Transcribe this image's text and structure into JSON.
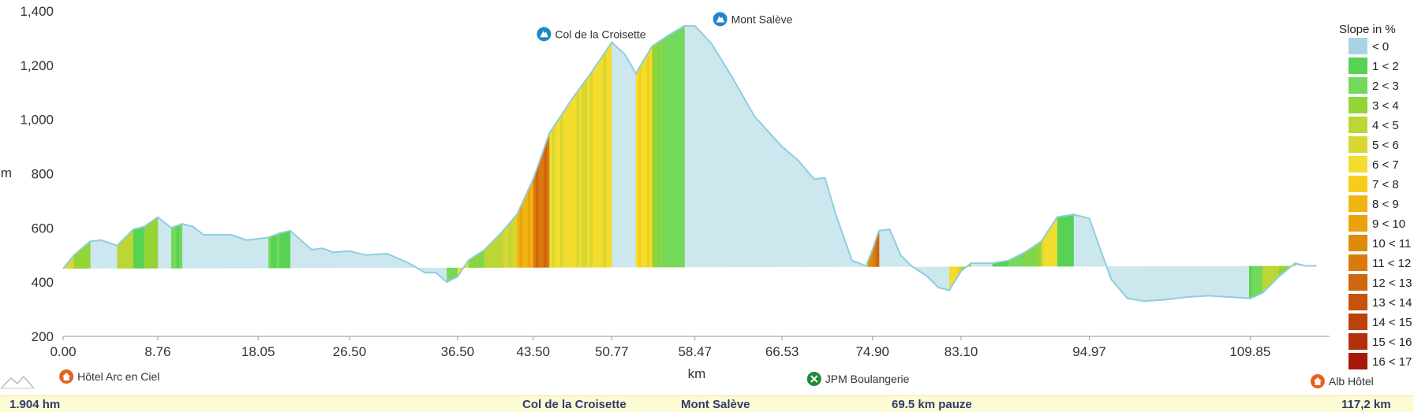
{
  "chart_data": {
    "type": "area",
    "title": "",
    "xlabel": "km",
    "ylabel": "m",
    "xlim": [
      0,
      117.2
    ],
    "ylim": [
      200,
      1400
    ],
    "x_ticks": [
      "0.00",
      "8.76",
      "18.05",
      "26.50",
      "36.50",
      "43.50",
      "50.77",
      "58.47",
      "66.53",
      "74.90",
      "83.10",
      "94.97",
      "109.85"
    ],
    "y_ticks": [
      "200",
      "400",
      "600",
      "800",
      "1,000",
      "1,200",
      "1,400"
    ],
    "elevation": {
      "km": [
        0,
        1,
        2.5,
        3.5,
        5,
        6.5,
        7.5,
        8.76,
        10,
        11,
        12,
        13,
        15.5,
        17,
        19,
        20,
        21,
        22,
        23,
        24,
        25,
        26.5,
        28,
        30,
        32,
        33.5,
        34.5,
        35.5,
        36.5,
        37.5,
        39,
        40.5,
        42,
        43.5,
        45,
        47,
        49,
        50.77,
        52,
        53,
        54.5,
        56,
        57.5,
        58.47,
        60,
        62,
        64,
        66.53,
        68,
        69.5,
        70.5,
        71.5,
        73,
        74.3,
        74.9,
        75.5,
        76.5,
        77.5,
        78.5,
        80,
        81,
        82,
        83.1,
        84,
        85,
        86,
        87.5,
        89,
        90.5,
        92,
        93.5,
        94.97,
        96,
        97,
        98.5,
        100,
        102,
        104,
        106,
        108,
        109.85,
        111,
        112.5,
        114,
        115,
        116,
        117.2
      ],
      "m": [
        450,
        500,
        550,
        555,
        535,
        595,
        605,
        640,
        600,
        615,
        605,
        575,
        575,
        555,
        565,
        580,
        590,
        555,
        520,
        525,
        510,
        515,
        500,
        505,
        470,
        435,
        435,
        400,
        420,
        480,
        520,
        580,
        650,
        780,
        950,
        1070,
        1180,
        1285,
        1240,
        1170,
        1270,
        1310,
        1345,
        1345,
        1280,
        1150,
        1010,
        900,
        850,
        780,
        785,
        650,
        480,
        460,
        520,
        590,
        595,
        500,
        460,
        420,
        380,
        370,
        440,
        470,
        470,
        470,
        480,
        510,
        550,
        640,
        650,
        635,
        520,
        410,
        340,
        330,
        335,
        345,
        350,
        345,
        340,
        360,
        420,
        470,
        460,
        460
      ]
    },
    "slope_legend": {
      "title": "Slope in %",
      "classes": [
        {
          "label": "< 0",
          "color": "#a8d4e2"
        },
        {
          "label": "1 < 2",
          "color": "#56d255"
        },
        {
          "label": "2 < 3",
          "color": "#74d85a"
        },
        {
          "label": "3 < 4",
          "color": "#93d437"
        },
        {
          "label": "4 < 5",
          "color": "#bcd635"
        },
        {
          "label": "5 < 6",
          "color": "#d7d632"
        },
        {
          "label": "6 < 7",
          "color": "#f2dd2e"
        },
        {
          "label": "7 < 8",
          "color": "#f7cc1a"
        },
        {
          "label": "8 < 9",
          "color": "#f1b512"
        },
        {
          "label": "9 < 10",
          "color": "#eba10c"
        },
        {
          "label": "10 < 11",
          "color": "#de8b0c"
        },
        {
          "label": "11 < 12",
          "color": "#d9790e"
        },
        {
          "label": "12 < 13",
          "color": "#cf650c"
        },
        {
          "label": "13 < 14",
          "color": "#c7520b"
        },
        {
          "label": "14 < 15",
          "color": "#bd410a"
        },
        {
          "label": "15 < 16",
          "color": "#b52e0b"
        },
        {
          "label": "16 < 17",
          "color": "#a6180b"
        }
      ]
    },
    "peaks": [
      {
        "label": "Col de la Croisette",
        "km": 44.5,
        "m": 1315
      },
      {
        "label": "Mont Salève",
        "km": 60.8,
        "m": 1370
      }
    ],
    "waypoints": [
      {
        "label": "Hôtel Arc en Ciel",
        "km": 0.3,
        "icon": "house-icon",
        "color": "#e8601e"
      },
      {
        "label": "JPM Boulangerie",
        "km": 69.5,
        "icon": "restaurant-icon",
        "color": "#1e8a3c"
      },
      {
        "label": "Alb Hôtel",
        "km": 116.1,
        "icon": "house-icon",
        "color": "#e8601e"
      }
    ]
  },
  "footer": {
    "climb": "1.904  hm",
    "col": "Col de la Croisette",
    "summit": "Mont Salève",
    "pause": "69.5 km pauze",
    "distance": "117,2  km"
  },
  "colors": {
    "profile_fill": "#cde7ee",
    "profile_line": "#8fcde0",
    "peak_icon": "#1f87c9"
  }
}
